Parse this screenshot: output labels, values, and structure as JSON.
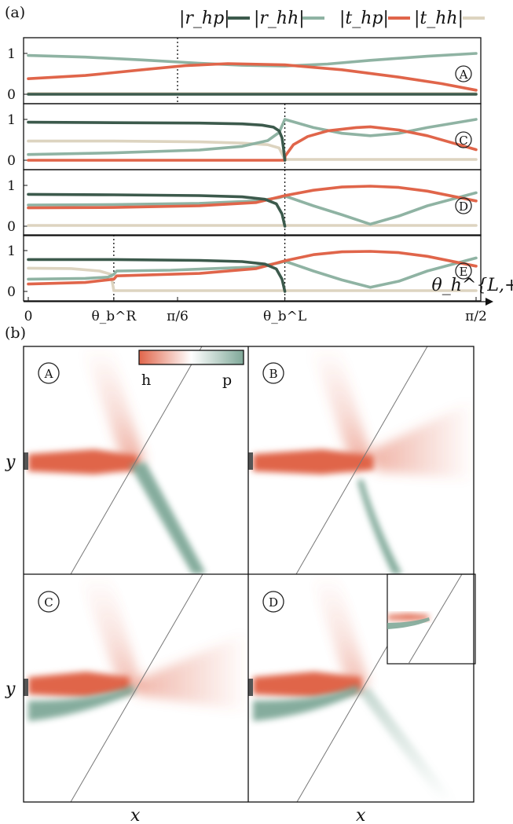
{
  "panel_labels": {
    "a": "(a)",
    "b": "(b)"
  },
  "colors": {
    "r_hp": "#3c5a4c",
    "r_hh": "#8fb3a3",
    "t_hp": "#e0654a",
    "t_hh": "#ddd4c0",
    "beam_h": "#e0654a",
    "beam_p": "#7fa898"
  },
  "legend": [
    {
      "label": "|r_hp|",
      "color_key": "r_hp"
    },
    {
      "label": "|r_hh|",
      "color_key": "r_hh"
    },
    {
      "label": "|t_hp|",
      "color_key": "t_hp"
    },
    {
      "label": "|t_hh|",
      "color_key": "t_hh"
    }
  ],
  "x_axis": {
    "ticks": [
      {
        "label": "0",
        "value": 0
      },
      {
        "label": "θ_b^R",
        "value": 0.3
      },
      {
        "label": "π/6",
        "value": 0.5236
      },
      {
        "label": "θ_b^L",
        "value": 0.9
      },
      {
        "label": "π/2",
        "value": 1.5708
      }
    ],
    "label": "θ_h^{L,+}"
  },
  "chart_data": {
    "type": "line",
    "xlim": [
      0,
      1.5708
    ],
    "ylim": [
      0,
      1
    ],
    "y_ticks": [
      "0",
      "1"
    ],
    "vlines": {
      "theta_b_R": 0.3,
      "pi_6": 0.5236,
      "theta_b_L": 0.9
    },
    "panels": [
      {
        "id": "A",
        "series": [
          {
            "key": "r_hp",
            "x": [
              0,
              1.5708
            ],
            "y": [
              0,
              0
            ]
          },
          {
            "key": "r_hh",
            "x": [
              0,
              0.2,
              0.4,
              0.6,
              0.75,
              0.9,
              1.05,
              1.2,
              1.4,
              1.5708
            ],
            "y": [
              0.95,
              0.91,
              0.84,
              0.76,
              0.71,
              0.69,
              0.74,
              0.83,
              0.93,
              1.0
            ]
          },
          {
            "key": "t_hp",
            "x": [
              0,
              0.2,
              0.4,
              0.55,
              0.7,
              0.9,
              1.1,
              1.3,
              1.45,
              1.5708
            ],
            "y": [
              0.38,
              0.46,
              0.6,
              0.7,
              0.75,
              0.72,
              0.6,
              0.42,
              0.26,
              0.1
            ]
          },
          {
            "key": "t_hh",
            "x": [
              0,
              1.5708
            ],
            "y": [
              0.02,
              0.02
            ]
          }
        ]
      },
      {
        "id": "C",
        "series": [
          {
            "key": "r_hp",
            "x": [
              0,
              0.3,
              0.6,
              0.75,
              0.82,
              0.86,
              0.88,
              0.89,
              0.895,
              0.9
            ],
            "y": [
              0.93,
              0.92,
              0.91,
              0.89,
              0.86,
              0.81,
              0.72,
              0.55,
              0.3,
              0.0
            ]
          },
          {
            "key": "r_hh",
            "x": [
              0,
              0.3,
              0.6,
              0.75,
              0.84,
              0.88,
              0.9,
              1.0,
              1.1,
              1.2,
              1.3,
              1.4,
              1.5708
            ],
            "y": [
              0.14,
              0.18,
              0.25,
              0.34,
              0.48,
              0.68,
              1.0,
              0.8,
              0.66,
              0.6,
              0.66,
              0.8,
              1.0
            ]
          },
          {
            "key": "t_hp",
            "x": [
              0,
              0.9,
              0.901,
              0.93,
              0.98,
              1.05,
              1.15,
              1.2,
              1.3,
              1.4,
              1.5708
            ],
            "y": [
              0.0,
              0.0,
              0.1,
              0.38,
              0.58,
              0.72,
              0.8,
              0.82,
              0.74,
              0.6,
              0.26
            ]
          },
          {
            "key": "t_hh",
            "x": [
              0,
              0.3,
              0.6,
              0.75,
              0.84,
              0.88,
              0.9,
              1.5708
            ],
            "y": [
              0.47,
              0.47,
              0.45,
              0.42,
              0.38,
              0.3,
              0.02,
              0.02
            ]
          }
        ]
      },
      {
        "id": "D",
        "series": [
          {
            "key": "r_hp",
            "x": [
              0,
              0.3,
              0.6,
              0.75,
              0.83,
              0.87,
              0.89,
              0.9
            ],
            "y": [
              0.78,
              0.77,
              0.75,
              0.72,
              0.66,
              0.55,
              0.3,
              0.0
            ]
          },
          {
            "key": "r_hh",
            "x": [
              0,
              0.3,
              0.6,
              0.8,
              0.88,
              0.9,
              1.0,
              1.1,
              1.2,
              1.3,
              1.4,
              1.5708
            ],
            "y": [
              0.52,
              0.53,
              0.56,
              0.62,
              0.7,
              0.74,
              0.5,
              0.28,
              0.05,
              0.25,
              0.5,
              0.82
            ]
          },
          {
            "key": "t_hp",
            "x": [
              0,
              0.3,
              0.6,
              0.8,
              0.9,
              1.0,
              1.1,
              1.2,
              1.3,
              1.4,
              1.5708
            ],
            "y": [
              0.45,
              0.46,
              0.5,
              0.58,
              0.75,
              0.88,
              0.96,
              0.98,
              0.95,
              0.86,
              0.62
            ]
          },
          {
            "key": "t_hh",
            "x": [
              0,
              1.5708
            ],
            "y": [
              0.02,
              0.02
            ]
          }
        ]
      },
      {
        "id": "E",
        "series": [
          {
            "key": "r_hp",
            "x": [
              0,
              0.3,
              0.6,
              0.75,
              0.83,
              0.87,
              0.89,
              0.9
            ],
            "y": [
              0.78,
              0.78,
              0.76,
              0.73,
              0.67,
              0.55,
              0.3,
              0.0
            ]
          },
          {
            "key": "r_hh",
            "x": [
              0,
              0.2,
              0.28,
              0.3,
              0.31,
              0.5,
              0.8,
              0.88,
              0.9,
              1.0,
              1.1,
              1.2,
              1.3,
              1.4,
              1.5708
            ],
            "y": [
              0.3,
              0.32,
              0.35,
              0.42,
              0.5,
              0.52,
              0.6,
              0.7,
              0.74,
              0.5,
              0.28,
              0.1,
              0.25,
              0.5,
              0.82
            ]
          },
          {
            "key": "t_hp",
            "x": [
              0,
              0.2,
              0.3,
              0.31,
              0.6,
              0.8,
              0.9,
              1.0,
              1.1,
              1.2,
              1.3,
              1.4,
              1.5708
            ],
            "y": [
              0.18,
              0.22,
              0.3,
              0.38,
              0.44,
              0.56,
              0.75,
              0.9,
              0.97,
              0.98,
              0.95,
              0.86,
              0.62
            ]
          },
          {
            "key": "t_hh",
            "x": [
              0,
              0.15,
              0.25,
              0.29,
              0.3,
              1.5708
            ],
            "y": [
              0.57,
              0.56,
              0.5,
              0.42,
              0.02,
              0.02
            ]
          }
        ]
      }
    ]
  },
  "field_maps": {
    "colorbar": {
      "left_label": "h",
      "right_label": "p"
    },
    "x_label": "x",
    "y_label": "y",
    "maps": [
      {
        "id": "A"
      },
      {
        "id": "B"
      },
      {
        "id": "C"
      },
      {
        "id": "D"
      }
    ]
  }
}
